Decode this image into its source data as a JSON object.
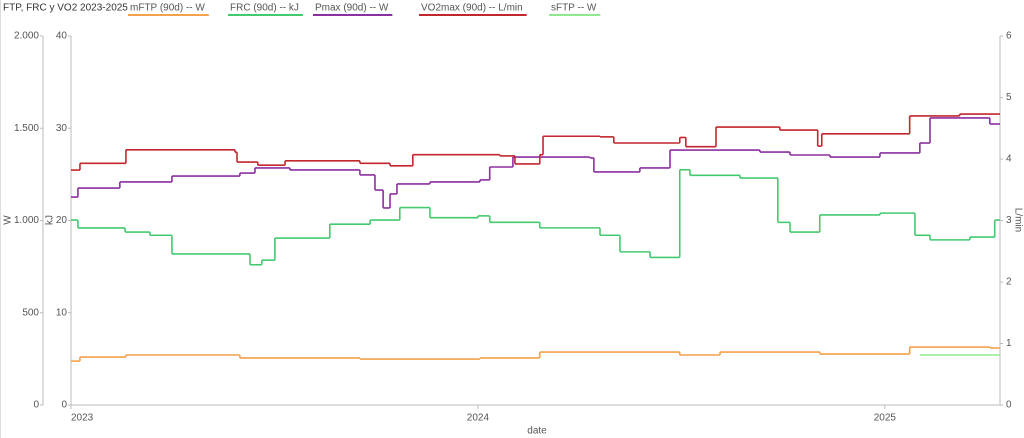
{
  "chart_data": {
    "type": "step-line",
    "title": "FTP, FRC y VO2 2023-2025",
    "xlabel": "date",
    "ylabel": "W",
    "y2label": "kJ",
    "y3label": "L/min",
    "xlim": [
      2023,
      2025.283
    ],
    "xticks": [
      2023,
      2024,
      2025
    ],
    "ylim": [
      0,
      2000
    ],
    "yticks": [
      0,
      500,
      {
        "value": 1000,
        "label": "1.000"
      },
      {
        "value": 1500,
        "label": "1.500"
      },
      {
        "value": 2000,
        "label": "2.000"
      }
    ],
    "y2lim": [
      0,
      40
    ],
    "y2ticks": [
      0,
      10,
      20,
      30,
      40
    ],
    "y3lim": [
      0,
      6
    ],
    "y3ticks": [
      0,
      1,
      2,
      3,
      4,
      5,
      6
    ],
    "series": [
      {
        "name": "mFTP (90d)  -- W",
        "color": "#f4a14c",
        "axis": "y",
        "x": [
          2023,
          2023.022,
          2023.135,
          2023.415,
          2023.71,
          2024.005,
          2024.152,
          2024.496,
          2024.595,
          2024.84,
          2025.061,
          2025.258
        ],
        "values": [
          238,
          260,
          271,
          255,
          249,
          255,
          287,
          271,
          287,
          276,
          314,
          309
        ]
      },
      {
        "name": "FRC (90d)  -- kJ",
        "color": "#45c96f",
        "axis": "y2",
        "x": [
          2023,
          2023.017,
          2023.133,
          2023.194,
          2023.248,
          2023.44,
          2023.469,
          2023.501,
          2023.636,
          2023.735,
          2023.808,
          2023.882,
          2024.0,
          2024.029,
          2024.152,
          2024.3,
          2024.349,
          2024.423,
          2024.496,
          2024.521,
          2024.644,
          2024.737,
          2024.767,
          2024.84,
          2024.988,
          2025.074,
          2025.111,
          2025.209,
          2025.27
        ],
        "values": [
          20.05,
          19.19,
          18.75,
          18.4,
          16.37,
          15.2,
          15.7,
          18.1,
          19.6,
          20.05,
          21.4,
          20.3,
          20.5,
          19.8,
          19.2,
          18.4,
          16.6,
          16.0,
          25.5,
          24.9,
          24.6,
          19.8,
          18.75,
          20.6,
          20.8,
          18.4,
          17.9,
          18.2,
          20.05
        ]
      },
      {
        "name": "Pmax (90d)  -- W",
        "color": "#8c2fa0",
        "axis": "y",
        "x": [
          2023,
          2023.017,
          2023.12,
          2023.248,
          2023.415,
          2023.452,
          2023.538,
          2023.71,
          2023.747,
          2023.767,
          2023.784,
          2023.801,
          2023.882,
          2024.005,
          2024.029,
          2024.086,
          2024.275,
          2024.285,
          2024.398,
          2024.472,
          2024.693,
          2024.767,
          2024.865,
          2024.988,
          2025.086,
          2025.111,
          2025.258
        ],
        "values": [
          1127,
          1176,
          1209,
          1241,
          1257,
          1285,
          1274,
          1247,
          1165,
          1068,
          1144,
          1198,
          1209,
          1220,
          1290,
          1344,
          1339,
          1263,
          1285,
          1382,
          1371,
          1355,
          1344,
          1366,
          1420,
          1556,
          1523
        ]
      },
      {
        "name": "VO2max (90d)  -- L/min",
        "color": "#c1272d",
        "axis": "y3",
        "x": [
          2023,
          2023.022,
          2023.135,
          2023.403,
          2023.408,
          2023.459,
          2023.526,
          2023.71,
          2023.784,
          2023.84,
          2024.054,
          2024.091,
          2024.152,
          2024.16,
          2024.3,
          2024.334,
          2024.496,
          2024.511,
          2024.585,
          2024.742,
          2024.835,
          2024.845,
          2025.061,
          2025.184
        ],
        "values": [
          3.82,
          3.93,
          4.15,
          4.11,
          3.95,
          3.9,
          3.97,
          3.93,
          3.89,
          4.07,
          4.05,
          3.92,
          4.07,
          4.37,
          4.36,
          4.26,
          4.35,
          4.2,
          4.52,
          4.47,
          4.21,
          4.41,
          4.7,
          4.73
        ]
      },
      {
        "name": "sFTP  -- W",
        "color": "#90e890",
        "axis": "y",
        "x": [
          2025.086
        ],
        "values": [
          271
        ]
      }
    ]
  }
}
